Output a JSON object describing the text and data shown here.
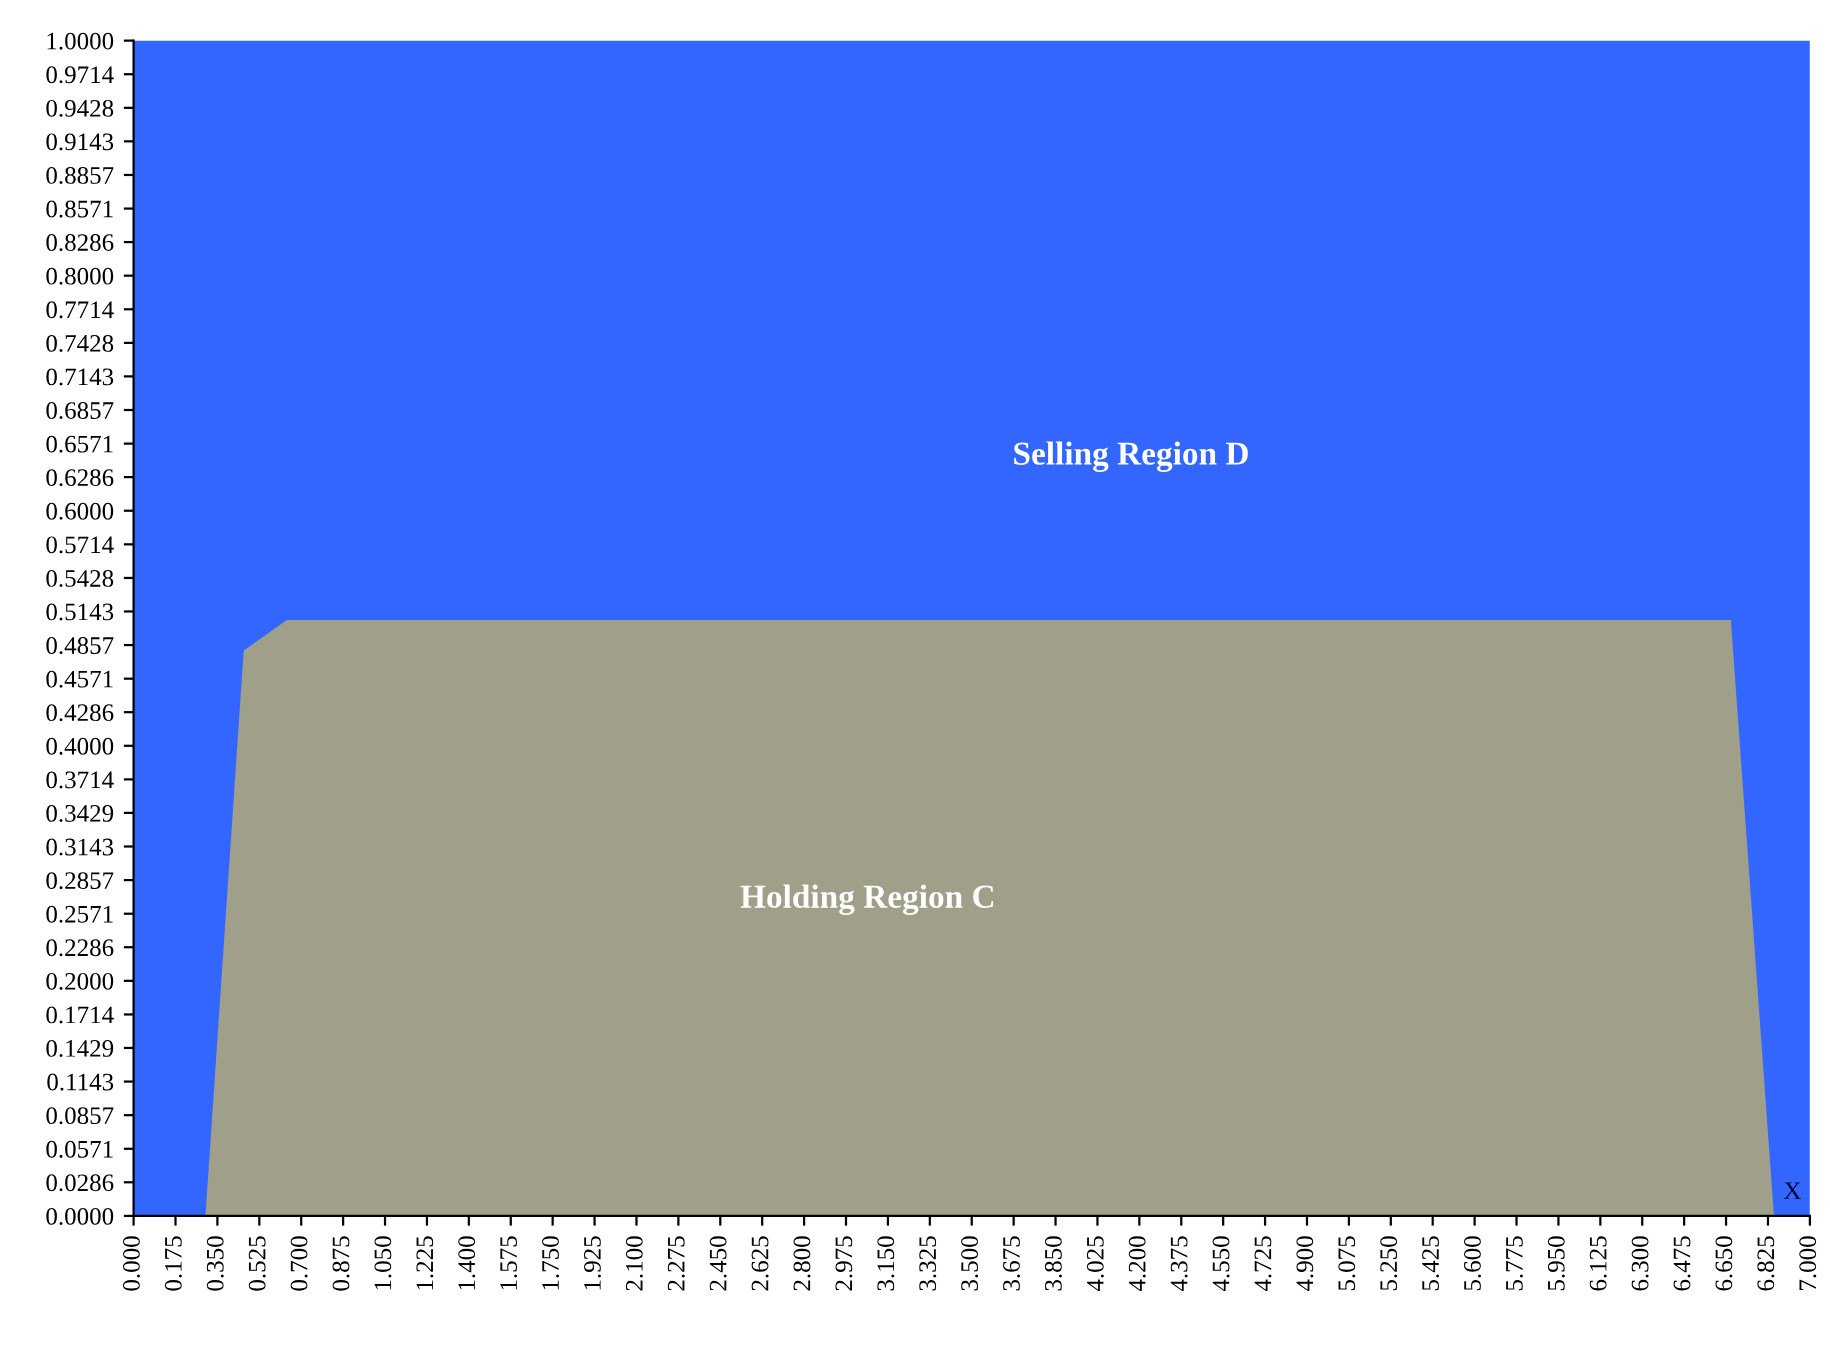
{
  "chart_data": {
    "type": "area",
    "xlabel": "X",
    "bands": [
      {
        "axis": "y",
        "from": 0,
        "to": 1,
        "label": "Selling Region D",
        "color": "#3366ff"
      }
    ],
    "series": [
      {
        "name": "Holding Region C",
        "color": "#a0a08a",
        "x": [
          0.3,
          0.46,
          0.64,
          6.67,
          6.85
        ],
        "values": [
          0,
          0.481,
          0.507,
          0.507,
          0
        ]
      }
    ],
    "xlim": [
      0,
      7
    ],
    "ylim": [
      0,
      1
    ],
    "xticks": [
      {
        "value": 0,
        "label": "0.000"
      },
      {
        "value": 0.175,
        "label": "0.175"
      },
      {
        "value": 0.35,
        "label": "0.350"
      },
      {
        "value": 0.525,
        "label": "0.525"
      },
      {
        "value": 0.7,
        "label": "0.700"
      },
      {
        "value": 0.875,
        "label": "0.875"
      },
      {
        "value": 1.05,
        "label": "1.050"
      },
      {
        "value": 1.225,
        "label": "1.225"
      },
      {
        "value": 1.4,
        "label": "1.400"
      },
      {
        "value": 1.575,
        "label": "1.575"
      },
      {
        "value": 1.75,
        "label": "1.750"
      },
      {
        "value": 1.925,
        "label": "1.925"
      },
      {
        "value": 2.1,
        "label": "2.100"
      },
      {
        "value": 2.275,
        "label": "2.275"
      },
      {
        "value": 2.45,
        "label": "2.450"
      },
      {
        "value": 2.625,
        "label": "2.625"
      },
      {
        "value": 2.8,
        "label": "2.800"
      },
      {
        "value": 2.975,
        "label": "2.975"
      },
      {
        "value": 3.15,
        "label": "3.150"
      },
      {
        "value": 3.325,
        "label": "3.325"
      },
      {
        "value": 3.5,
        "label": "3.500"
      },
      {
        "value": 3.675,
        "label": "3.675"
      },
      {
        "value": 3.85,
        "label": "3.850"
      },
      {
        "value": 4.025,
        "label": "4.025"
      },
      {
        "value": 4.2,
        "label": "4.200"
      },
      {
        "value": 4.375,
        "label": "4.375"
      },
      {
        "value": 4.55,
        "label": "4.550"
      },
      {
        "value": 4.725,
        "label": "4.725"
      },
      {
        "value": 4.9,
        "label": "4.900"
      },
      {
        "value": 5.075,
        "label": "5.075"
      },
      {
        "value": 5.25,
        "label": "5.250"
      },
      {
        "value": 5.425,
        "label": "5.425"
      },
      {
        "value": 5.6,
        "label": "5.600"
      },
      {
        "value": 5.775,
        "label": "5.775"
      },
      {
        "value": 5.95,
        "label": "5.950"
      },
      {
        "value": 6.125,
        "label": "6.125"
      },
      {
        "value": 6.3,
        "label": "6.300"
      },
      {
        "value": 6.475,
        "label": "6.475"
      },
      {
        "value": 6.65,
        "label": "6.650"
      },
      {
        "value": 6.825,
        "label": "6.825"
      },
      {
        "value": 7,
        "label": "7.000"
      }
    ],
    "yticks": [
      {
        "value": 0,
        "label": "0.0000"
      },
      {
        "value": 0.0286,
        "label": "0.0286"
      },
      {
        "value": 0.0571,
        "label": "0.0571"
      },
      {
        "value": 0.0857,
        "label": "0.0857"
      },
      {
        "value": 0.1143,
        "label": "0.1143"
      },
      {
        "value": 0.1429,
        "label": "0.1429"
      },
      {
        "value": 0.1714,
        "label": "0.1714"
      },
      {
        "value": 0.2,
        "label": "0.2000"
      },
      {
        "value": 0.2286,
        "label": "0.2286"
      },
      {
        "value": 0.2571,
        "label": "0.2571"
      },
      {
        "value": 0.2857,
        "label": "0.2857"
      },
      {
        "value": 0.3143,
        "label": "0.3143"
      },
      {
        "value": 0.3429,
        "label": "0.3429"
      },
      {
        "value": 0.3714,
        "label": "0.3714"
      },
      {
        "value": 0.4,
        "label": "0.4000"
      },
      {
        "value": 0.4286,
        "label": "0.4286"
      },
      {
        "value": 0.4571,
        "label": "0.4571"
      },
      {
        "value": 0.4857,
        "label": "0.4857"
      },
      {
        "value": 0.5143,
        "label": "0.5143"
      },
      {
        "value": 0.5428,
        "label": "0.5428"
      },
      {
        "value": 0.5714,
        "label": "0.5714"
      },
      {
        "value": 0.6,
        "label": "0.6000"
      },
      {
        "value": 0.6286,
        "label": "0.6286"
      },
      {
        "value": 0.6571,
        "label": "0.6571"
      },
      {
        "value": 0.6857,
        "label": "0.6857"
      },
      {
        "value": 0.7143,
        "label": "0.7143"
      },
      {
        "value": 0.7428,
        "label": "0.7428"
      },
      {
        "value": 0.7714,
        "label": "0.7714"
      },
      {
        "value": 0.8,
        "label": "0.8000"
      },
      {
        "value": 0.8286,
        "label": "0.8286"
      },
      {
        "value": 0.8571,
        "label": "0.8571"
      },
      {
        "value": 0.8857,
        "label": "0.8857"
      },
      {
        "value": 0.9143,
        "label": "0.9143"
      },
      {
        "value": 0.9428,
        "label": "0.9428"
      },
      {
        "value": 0.9714,
        "label": "0.9714"
      },
      {
        "value": 1,
        "label": "1.0000"
      }
    ],
    "grid": false
  }
}
